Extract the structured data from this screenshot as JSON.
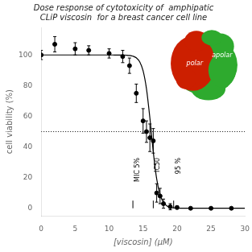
{
  "chart_data": {
    "type": "scatter",
    "title": [
      "Dose response of cytotoxicity of  amphipatic",
      "CLiP viscosin  for a breast cancer cell line"
    ],
    "x_label": "[viscosin] (μM)",
    "y_label": "cell viability (%)",
    "xlim": [
      0,
      30
    ],
    "ylim": [
      -5,
      118
    ],
    "xticks": [
      0,
      5,
      10,
      15,
      20,
      25,
      30
    ],
    "yticks": [
      0,
      20,
      40,
      60,
      80,
      100
    ],
    "grid": false,
    "background_color": "#ffffff",
    "series": [
      {
        "type": "scatter",
        "marker": "circle",
        "line_style": "none",
        "color": "#000000",
        "x": [
          0,
          2,
          5,
          7,
          10,
          12,
          13,
          14,
          15,
          15.5,
          16,
          16.5,
          17,
          17.5,
          18,
          19,
          20,
          22,
          25,
          28
        ],
        "values": [
          100,
          107,
          104,
          103,
          101,
          99,
          93,
          75,
          57,
          50,
          46,
          44,
          10,
          8,
          3,
          1,
          0.5,
          0,
          0,
          0
        ],
        "error_y": [
          3,
          5,
          4,
          3,
          3,
          4,
          5,
          6,
          8,
          7,
          9,
          8,
          6,
          5,
          3,
          2,
          1,
          0.5,
          0.5,
          0.5
        ]
      },
      {
        "type": "line",
        "marker": "none",
        "line_style": "solid",
        "color": "#000000",
        "x": [
          0,
          1,
          2,
          3,
          4,
          5,
          6,
          7,
          8,
          9,
          10,
          10.5,
          11,
          11.5,
          12,
          12.5,
          13,
          13.5,
          14,
          14.5,
          15,
          15.5,
          16,
          16.5,
          17,
          17.5,
          18,
          18.5,
          19,
          19.5,
          20,
          20.5,
          21,
          21.5,
          22,
          23,
          24,
          25,
          26,
          27,
          28,
          29,
          30
        ],
        "values": [
          100,
          100,
          100,
          100,
          100,
          100,
          100,
          100,
          100,
          100,
          100,
          100,
          99.99,
          99.98,
          99.95,
          99.87,
          99.69,
          99.23,
          98.13,
          95.52,
          89.66,
          77.9,
          58.9,
          36.82,
          19.15,
          8.79,
          3.77,
          1.57,
          0.64,
          0.26,
          0.11,
          0.04,
          0.02,
          0.01,
          0,
          0,
          0,
          0,
          0,
          0,
          0,
          0,
          0
        ]
      }
    ],
    "reference_lines": [
      {
        "y": 50,
        "line_style": "dotted",
        "color": "#000000"
      }
    ],
    "annotations": [
      {
        "text": "MIC 5%",
        "x": 13.5,
        "y": 33,
        "line": [
          0,
          5
        ],
        "color": "#000000"
      },
      {
        "text": "IC50",
        "x": 16.5,
        "y": 33,
        "line": [
          0,
          5
        ],
        "color": "#000000"
      },
      {
        "text": "95 %",
        "x": 19.5,
        "y": 33,
        "line": [
          0,
          5
        ],
        "color": "#000000"
      }
    ],
    "inset": [
      {
        "text": "polar",
        "color": "#cc1f00"
      },
      {
        "text": "apolar",
        "color": "#2eaa2e"
      }
    ]
  }
}
